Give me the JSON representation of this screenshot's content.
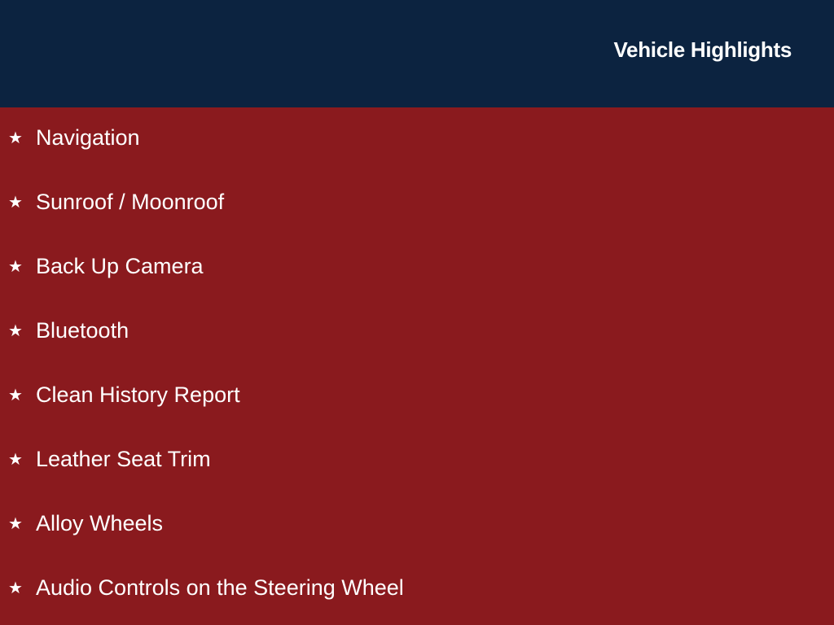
{
  "header": {
    "title": "Vehicle Highlights"
  },
  "colors": {
    "header_bg": "#0c2340",
    "body_bg": "#8a1a1e"
  },
  "bullet_icon": "star-icon",
  "highlights": [
    "Navigation",
    "Sunroof / Moonroof",
    "Back Up Camera",
    "Bluetooth",
    "Clean History Report",
    "Leather Seat Trim",
    "Alloy Wheels",
    "Audio Controls on the Steering Wheel"
  ]
}
